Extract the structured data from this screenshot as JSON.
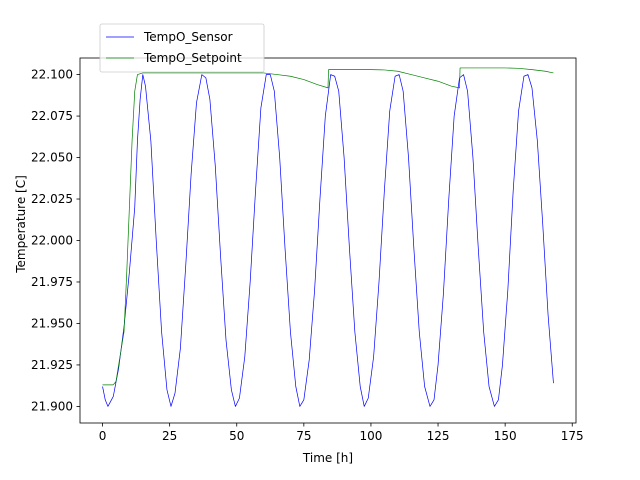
{
  "chart_data": {
    "type": "line",
    "title": "",
    "xlabel": "Time [h]",
    "ylabel": "Temperature [C]",
    "xlim": [
      -8.4,
      176.4
    ],
    "ylim": [
      21.89,
      22.11
    ],
    "x_ticks": [
      0,
      25,
      50,
      75,
      100,
      125,
      150,
      175
    ],
    "x_tick_labels": [
      "0",
      "25",
      "50",
      "75",
      "100",
      "125",
      "150",
      "175"
    ],
    "y_ticks": [
      21.9,
      21.925,
      21.95,
      21.975,
      22.0,
      22.025,
      22.05,
      22.075,
      22.1
    ],
    "y_tick_labels": [
      "21.900",
      "21.925",
      "21.950",
      "21.975",
      "22.000",
      "22.025",
      "22.050",
      "22.075",
      "22.100"
    ],
    "grid": false,
    "legend_position": "top-left",
    "series": [
      {
        "name": "TempO_Sensor",
        "color": "#0000ff",
        "points": [
          [
            0,
            21.912
          ],
          [
            1,
            21.904
          ],
          [
            2,
            21.9
          ],
          [
            4,
            21.906
          ],
          [
            6,
            21.923
          ],
          [
            8,
            21.948
          ],
          [
            10,
            21.981
          ],
          [
            12,
            22.02
          ],
          [
            13,
            22.06
          ],
          [
            14,
            22.085
          ],
          [
            15,
            22.1
          ],
          [
            16,
            22.093
          ],
          [
            18,
            22.06
          ],
          [
            20,
            22.0
          ],
          [
            22,
            21.945
          ],
          [
            24,
            21.91
          ],
          [
            25.5,
            21.9
          ],
          [
            27,
            21.908
          ],
          [
            29,
            21.935
          ],
          [
            31,
            21.985
          ],
          [
            33,
            22.04
          ],
          [
            35,
            22.083
          ],
          [
            37,
            22.1
          ],
          [
            38.5,
            22.098
          ],
          [
            40,
            22.085
          ],
          [
            42,
            22.045
          ],
          [
            44,
            21.99
          ],
          [
            46,
            21.94
          ],
          [
            48,
            21.91
          ],
          [
            49.5,
            21.9
          ],
          [
            51,
            21.905
          ],
          [
            53,
            21.93
          ],
          [
            55,
            21.975
          ],
          [
            57,
            22.03
          ],
          [
            59,
            22.08
          ],
          [
            61,
            22.1
          ],
          [
            62.5,
            22.1
          ],
          [
            64,
            22.09
          ],
          [
            66,
            22.05
          ],
          [
            68,
            21.995
          ],
          [
            70,
            21.945
          ],
          [
            72,
            21.912
          ],
          [
            73.5,
            21.9
          ],
          [
            75,
            21.904
          ],
          [
            77,
            21.928
          ],
          [
            79,
            21.97
          ],
          [
            81,
            22.025
          ],
          [
            83,
            22.075
          ],
          [
            85,
            22.1
          ],
          [
            86.5,
            22.099
          ],
          [
            88,
            22.09
          ],
          [
            90,
            22.05
          ],
          [
            92,
            21.995
          ],
          [
            94,
            21.945
          ],
          [
            96,
            21.912
          ],
          [
            97.5,
            21.9
          ],
          [
            99,
            21.905
          ],
          [
            101,
            21.93
          ],
          [
            103,
            21.975
          ],
          [
            105,
            22.03
          ],
          [
            107,
            22.078
          ],
          [
            109,
            22.099
          ],
          [
            110.5,
            22.1
          ],
          [
            112,
            22.09
          ],
          [
            114,
            22.05
          ],
          [
            116,
            21.995
          ],
          [
            118,
            21.945
          ],
          [
            120,
            21.912
          ],
          [
            122,
            21.9
          ],
          [
            123.5,
            21.904
          ],
          [
            125,
            21.925
          ],
          [
            127,
            21.968
          ],
          [
            129,
            22.025
          ],
          [
            131,
            22.075
          ],
          [
            133,
            22.098
          ],
          [
            134.5,
            22.1
          ],
          [
            136,
            22.09
          ],
          [
            138,
            22.05
          ],
          [
            140,
            21.995
          ],
          [
            142,
            21.945
          ],
          [
            144,
            21.912
          ],
          [
            146,
            21.9
          ],
          [
            147.5,
            21.904
          ],
          [
            149,
            21.925
          ],
          [
            151,
            21.97
          ],
          [
            153,
            22.03
          ],
          [
            155,
            22.078
          ],
          [
            157,
            22.099
          ],
          [
            158.5,
            22.1
          ],
          [
            160,
            22.092
          ],
          [
            162,
            22.06
          ],
          [
            164,
            22.01
          ],
          [
            166,
            21.955
          ],
          [
            168,
            21.914
          ]
        ]
      },
      {
        "name": "TempO_Setpoint",
        "color": "#008000",
        "points": [
          [
            0,
            21.913
          ],
          [
            3,
            21.913
          ],
          [
            4,
            21.913
          ],
          [
            5,
            21.915
          ],
          [
            6,
            21.925
          ],
          [
            7,
            21.935
          ],
          [
            8,
            21.945
          ],
          [
            9,
            21.98
          ],
          [
            10,
            22.02
          ],
          [
            11,
            22.06
          ],
          [
            12,
            22.09
          ],
          [
            13,
            22.1
          ],
          [
            15,
            22.101
          ],
          [
            20,
            22.101
          ],
          [
            30,
            22.101
          ],
          [
            40,
            22.101
          ],
          [
            50,
            22.101
          ],
          [
            60,
            22.101
          ],
          [
            65,
            22.1
          ],
          [
            70,
            22.099
          ],
          [
            75,
            22.097
          ],
          [
            80,
            22.094
          ],
          [
            84,
            22.092
          ],
          [
            84.2,
            22.103
          ],
          [
            90,
            22.103
          ],
          [
            100,
            22.103
          ],
          [
            105,
            22.1028
          ],
          [
            110,
            22.102
          ],
          [
            115,
            22.1
          ],
          [
            120,
            22.098
          ],
          [
            125,
            22.096
          ],
          [
            130,
            22.093
          ],
          [
            133,
            22.092
          ],
          [
            133.2,
            22.104
          ],
          [
            140,
            22.104
          ],
          [
            150,
            22.104
          ],
          [
            155,
            22.1038
          ],
          [
            160,
            22.103
          ],
          [
            165,
            22.102
          ],
          [
            168,
            22.101
          ]
        ]
      }
    ]
  }
}
